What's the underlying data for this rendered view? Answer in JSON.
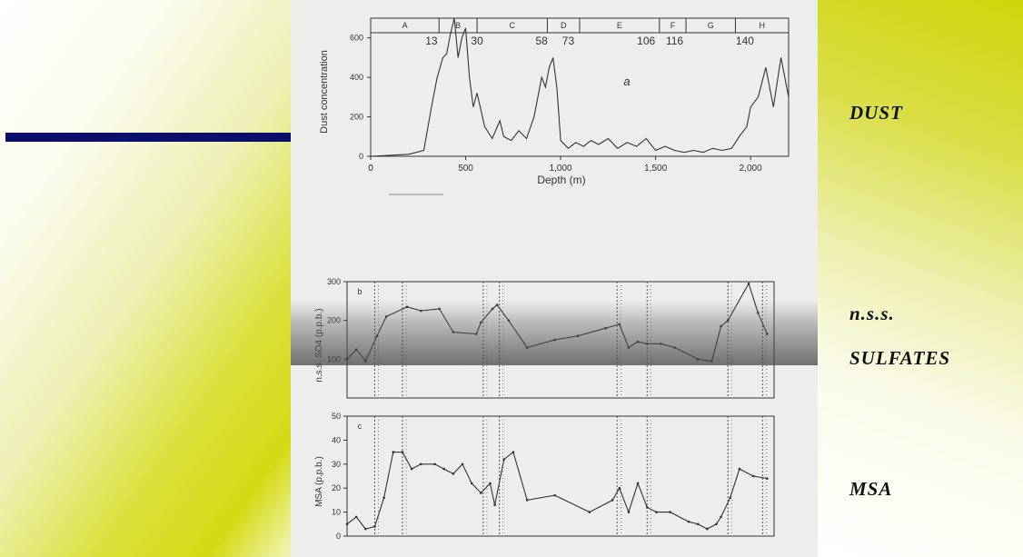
{
  "slide": {
    "labels": {
      "dust": "DUST",
      "sulfates_1": "n.s.s.",
      "sulfates_2": "SULFATES",
      "msa": "MSA"
    },
    "colors": {
      "accent_bar": "#0a0f6b",
      "olive": "#d4da14",
      "ink": "#333333"
    }
  },
  "chart_data": [
    {
      "type": "line",
      "panel_letter": "a",
      "ylabel": "Dust concentration",
      "xlabel": "Depth (m)",
      "xlim": [
        0,
        2200
      ],
      "ylim": [
        0,
        700
      ],
      "x_ticks": [
        "0",
        "500",
        "1,000",
        "1,500",
        "2,000"
      ],
      "y_ticks": [
        "0",
        "200",
        "400",
        "600"
      ],
      "stages": [
        {
          "label": "A",
          "from": 0,
          "to": 360
        },
        {
          "label": "B",
          "from": 360,
          "to": 560
        },
        {
          "label": "C",
          "from": 560,
          "to": 930
        },
        {
          "label": "D",
          "from": 930,
          "to": 1100
        },
        {
          "label": "E",
          "from": 1100,
          "to": 1520
        },
        {
          "label": "F",
          "from": 1520,
          "to": 1660
        },
        {
          "label": "G",
          "from": 1660,
          "to": 1920
        },
        {
          "label": "H",
          "from": 1920,
          "to": 2200
        }
      ],
      "age_labels": [
        {
          "depth": 320,
          "text": "13"
        },
        {
          "depth": 560,
          "text": "30"
        },
        {
          "depth": 900,
          "text": "58"
        },
        {
          "depth": 1040,
          "text": "73"
        },
        {
          "depth": 1450,
          "text": "106"
        },
        {
          "depth": 1600,
          "text": "116"
        },
        {
          "depth": 1970,
          "text": "140"
        }
      ],
      "series": [
        {
          "x": [
            0,
            100,
            200,
            280,
            320,
            350,
            380,
            400,
            420,
            440,
            460,
            480,
            500,
            520,
            540,
            560,
            600,
            640,
            680,
            700,
            740,
            780,
            820,
            860,
            880,
            900,
            920,
            940,
            960,
            980,
            1000,
            1040,
            1080,
            1120,
            1160,
            1200,
            1250,
            1300,
            1350,
            1400,
            1450,
            1500,
            1550,
            1600,
            1650,
            1700,
            1750,
            1800,
            1850,
            1900,
            1940,
            1980,
            2000,
            2040,
            2080,
            2120,
            2160,
            2200
          ],
          "y": [
            0,
            5,
            10,
            30,
            250,
            400,
            500,
            520,
            620,
            700,
            500,
            600,
            650,
            400,
            250,
            320,
            150,
            90,
            180,
            100,
            80,
            130,
            90,
            200,
            300,
            400,
            350,
            450,
            500,
            350,
            80,
            40,
            70,
            50,
            80,
            60,
            90,
            40,
            70,
            50,
            90,
            30,
            50,
            30,
            20,
            30,
            20,
            40,
            30,
            40,
            100,
            150,
            250,
            300,
            450,
            250,
            500,
            300
          ]
        }
      ]
    },
    {
      "type": "line",
      "panel_letter": "b",
      "ylabel": "n.s.s. SO4 (p.p.b.)",
      "ylim": [
        0,
        300
      ],
      "y_ticks": [
        "100",
        "200",
        "300"
      ],
      "series": [
        {
          "x": [
            300,
            340,
            380,
            430,
            470,
            560,
            620,
            700,
            760,
            860,
            880,
            930,
            950,
            1000,
            1080,
            1200,
            1300,
            1420,
            1480,
            1520,
            1560,
            1600,
            1660,
            1720,
            1820,
            1880,
            1920,
            1950,
            2040,
            2080,
            2120
          ],
          "y": [
            100,
            125,
            95,
            160,
            210,
            235,
            225,
            230,
            170,
            165,
            195,
            230,
            240,
            200,
            130,
            150,
            160,
            180,
            190,
            130,
            145,
            140,
            140,
            130,
            100,
            95,
            185,
            200,
            295,
            220,
            165
          ]
        }
      ]
    },
    {
      "type": "line",
      "panel_letter": "c",
      "ylabel": "MSA (p.p.b.)",
      "ylim": [
        0,
        50
      ],
      "y_ticks": [
        "0",
        "10",
        "20",
        "30",
        "40",
        "50"
      ],
      "series": [
        {
          "x": [
            300,
            340,
            380,
            420,
            460,
            500,
            540,
            580,
            620,
            680,
            720,
            760,
            800,
            840,
            880,
            920,
            940,
            980,
            1020,
            1080,
            1200,
            1350,
            1450,
            1480,
            1520,
            1560,
            1600,
            1640,
            1700,
            1780,
            1820,
            1860,
            1900,
            1920,
            1960,
            2000,
            2060,
            2120
          ],
          "y": [
            5,
            8,
            3,
            4,
            16,
            35,
            35,
            28,
            30,
            30,
            28,
            26,
            30,
            22,
            18,
            22,
            13,
            32,
            35,
            15,
            17,
            10,
            15,
            20,
            10,
            22,
            12,
            10,
            10,
            6,
            5,
            3,
            5,
            8,
            16,
            28,
            25,
            24
          ]
        }
      ]
    }
  ]
}
